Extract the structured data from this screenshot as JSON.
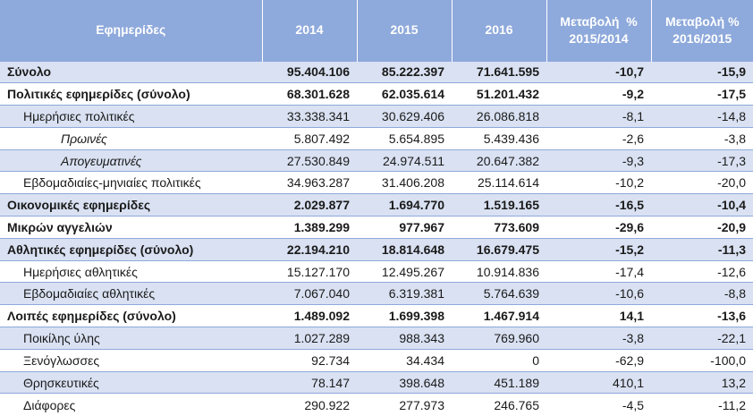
{
  "header": {
    "col_name": "Εφημερίδες",
    "col_2014": "2014",
    "col_2015": "2015",
    "col_2016": "2016",
    "col_chg1_line1": "Μεταβολή  %",
    "col_chg1_line2": "2015/2014",
    "col_chg2_line1": "Μεταβολή %",
    "col_chg2_line2": "2016/2015"
  },
  "rows": [
    {
      "name": "Σύνολο",
      "v2014": "95.404.106",
      "v2015": "85.222.397",
      "v2016": "71.641.595",
      "chg1": "-10,7",
      "chg2": "-15,9"
    },
    {
      "name": "Πολιτικές εφημερίδες (σύνολο)",
      "v2014": "68.301.628",
      "v2015": "62.035.614",
      "v2016": "51.201.432",
      "chg1": "-9,2",
      "chg2": "-17,5"
    },
    {
      "name": "Ημερήσιες πολιτικές",
      "v2014": "33.338.341",
      "v2015": "30.629.406",
      "v2016": "26.086.818",
      "chg1": "-8,1",
      "chg2": "-14,8"
    },
    {
      "name": "Πρωινές",
      "v2014": "5.807.492",
      "v2015": "5.654.895",
      "v2016": "5.439.436",
      "chg1": "-2,6",
      "chg2": "-3,8"
    },
    {
      "name": "Απογευματινές",
      "v2014": "27.530.849",
      "v2015": "24.974.511",
      "v2016": "20.647.382",
      "chg1": "-9,3",
      "chg2": "-17,3"
    },
    {
      "name": "Εβδομαδιαίες-μηνιαίες πολιτικές",
      "v2014": "34.963.287",
      "v2015": "31.406.208",
      "v2016": "25.114.614",
      "chg1": "-10,2",
      "chg2": "-20,0"
    },
    {
      "name": "Οικονομικές εφημερίδες",
      "v2014": "2.029.877",
      "v2015": "1.694.770",
      "v2016": "1.519.165",
      "chg1": "-16,5",
      "chg2": "-10,4"
    },
    {
      "name": "Μικρών αγγελιών",
      "v2014": "1.389.299",
      "v2015": "977.967",
      "v2016": "773.609",
      "chg1": "-29,6",
      "chg2": "-20,9"
    },
    {
      "name": "Αθλητικές εφημερίδες (σύνολο)",
      "v2014": "22.194.210",
      "v2015": "18.814.648",
      "v2016": "16.679.475",
      "chg1": "-15,2",
      "chg2": "-11,3"
    },
    {
      "name": "Ημερήσιες αθλητικές",
      "v2014": "15.127.170",
      "v2015": "12.495.267",
      "v2016": "10.914.836",
      "chg1": "-17,4",
      "chg2": "-12,6"
    },
    {
      "name": "Εβδομαδιαίες αθλητικές",
      "v2014": "7.067.040",
      "v2015": "6.319.381",
      "v2016": "5.764.639",
      "chg1": "-10,6",
      "chg2": "-8,8"
    },
    {
      "name": "Λοιπές εφημερίδες (σύνολο)",
      "v2014": "1.489.092",
      "v2015": "1.699.398",
      "v2016": "1.467.914",
      "chg1": "14,1",
      "chg2": "-13,6"
    },
    {
      "name": "Ποικίλης ύλης",
      "v2014": "1.027.289",
      "v2015": "988.343",
      "v2016": "769.960",
      "chg1": "-3,8",
      "chg2": "-22,1"
    },
    {
      "name": "Ξενόγλωσσες",
      "v2014": "92.734",
      "v2015": "34.434",
      "v2016": "0",
      "chg1": "-62,9",
      "chg2": "-100,0"
    },
    {
      "name": "Θρησκευτικές",
      "v2014": "78.147",
      "v2015": "398.648",
      "v2016": "451.189",
      "chg1": "410,1",
      "chg2": "13,2"
    },
    {
      "name": "Διάφορες",
      "v2014": "290.922",
      "v2015": "277.973",
      "v2016": "246.765",
      "chg1": "-4,5",
      "chg2": "-11,2"
    }
  ]
}
